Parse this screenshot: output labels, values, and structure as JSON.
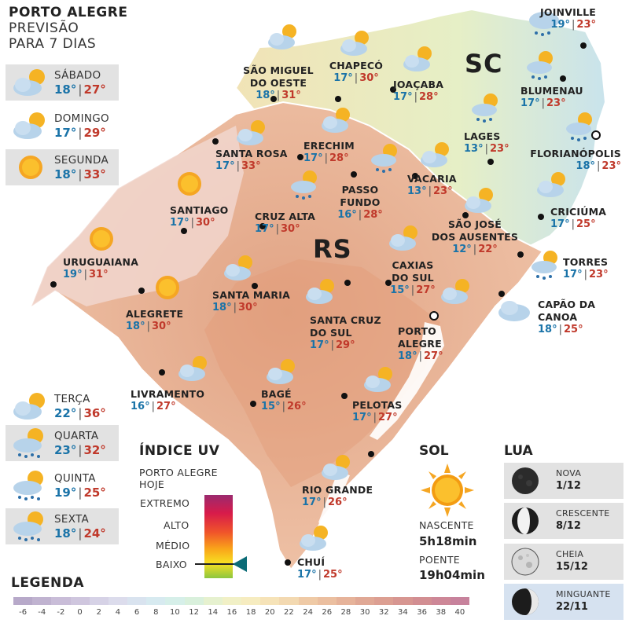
{
  "header": {
    "line1": "PORTO ALEGRE",
    "line2": "PREVISÃO",
    "line3": "PARA 7 DIAS"
  },
  "forecast_days": [
    {
      "name": "SÁBADO",
      "min": "18°",
      "max": "27°",
      "icon": "sun-cloud-icon"
    },
    {
      "name": "DOMINGO",
      "min": "17°",
      "max": "29°",
      "icon": "sun-cloud-icon"
    },
    {
      "name": "SEGUNDA",
      "min": "18°",
      "max": "33°",
      "icon": "sun-icon"
    },
    {
      "name": "TERÇA",
      "min": "22°",
      "max": "36°",
      "icon": "sun-cloud-icon"
    },
    {
      "name": "QUARTA",
      "min": "23°",
      "max": "32°",
      "icon": "sun-cloud-rain-icon"
    },
    {
      "name": "QUINTA",
      "min": "19°",
      "max": "25°",
      "icon": "sun-cloud-rain-icon"
    },
    {
      "name": "SEXTA",
      "min": "18°",
      "max": "24°",
      "icon": "sun-cloud-rain-icon"
    }
  ],
  "states": {
    "rs": "RS",
    "sc": "SC"
  },
  "cities": {
    "joinville": {
      "name": "JOINVILLE",
      "min": "19°",
      "max": "23°"
    },
    "blumenau": {
      "name": "BLUMENAU",
      "min": "17°",
      "max": "23°"
    },
    "chapeco": {
      "name": "CHAPECÓ",
      "min": "17°",
      "max": "30°"
    },
    "sao_miguel": {
      "name": "SÃO MIGUEL\nDO OESTE",
      "min": "18°",
      "max": "31°"
    },
    "joacaba": {
      "name": "JOAÇABA",
      "min": "17°",
      "max": "28°"
    },
    "lages": {
      "name": "LAGES",
      "min": "13°",
      "max": "23°"
    },
    "florianopolis": {
      "name": "FLORIANÓPOLIS",
      "min": "18°",
      "max": "23°"
    },
    "santa_rosa": {
      "name": "SANTA ROSA",
      "min": "17°",
      "max": "33°"
    },
    "erechim": {
      "name": "ERECHIM",
      "min": "17°",
      "max": "28°"
    },
    "vacaria": {
      "name": "VACARIA",
      "min": "13°",
      "max": "23°"
    },
    "passo_fundo": {
      "name": "PASSO\nFUNDO",
      "min": "16°",
      "max": "28°"
    },
    "santiago": {
      "name": "SANTIAGO",
      "min": "17°",
      "max": "30°"
    },
    "cruz_alta": {
      "name": "CRUZ ALTA",
      "min": "17°",
      "max": "30°"
    },
    "criciuma": {
      "name": "CRICIÚMA",
      "min": "17°",
      "max": "25°"
    },
    "sao_jose": {
      "name": "SÃO JOSÉ\nDOS AUSENTES",
      "min": "12°",
      "max": "22°"
    },
    "uruguaiana": {
      "name": "URUGUAIANA",
      "min": "19°",
      "max": "31°"
    },
    "torres": {
      "name": "TORRES",
      "min": "17°",
      "max": "23°"
    },
    "caxias": {
      "name": "CAXIAS\nDO SUL",
      "min": "15°",
      "max": "27°"
    },
    "santa_maria": {
      "name": "SANTA MARIA",
      "min": "18°",
      "max": "30°"
    },
    "capao": {
      "name": "CAPÃO DA\nCANOA",
      "min": "18°",
      "max": "25°"
    },
    "alegrete": {
      "name": "ALEGRETE",
      "min": "18°",
      "max": "30°"
    },
    "santa_cruz": {
      "name": "SANTA CRUZ\nDO SUL",
      "min": "17°",
      "max": "29°"
    },
    "porto_alegre": {
      "name": "PORTO\nALEGRE",
      "min": "18°",
      "max": "27°"
    },
    "livramento": {
      "name": "LIVRAMENTO",
      "min": "16°",
      "max": "27°"
    },
    "bage": {
      "name": "BAGÉ",
      "min": "15°",
      "max": "26°"
    },
    "pelotas": {
      "name": "PELOTAS",
      "min": "17°",
      "max": "27°"
    },
    "rio_grande": {
      "name": "RIO GRANDE",
      "min": "17°",
      "max": "26°"
    },
    "chui": {
      "name": "CHUÍ",
      "min": "17°",
      "max": "25°"
    }
  },
  "uv": {
    "title": "ÍNDICE UV",
    "subtitle_1": "PORTO ALEGRE",
    "subtitle_2": "HOJE",
    "levels": [
      "EXTREMO",
      "ALTO",
      "MÉDIO",
      "BAIXO"
    ],
    "current": "BAIXO"
  },
  "sol": {
    "title": "SOL",
    "sunrise_label": "NASCENTE",
    "sunrise": "5h18min",
    "sunset_label": "POENTE",
    "sunset": "19h04min"
  },
  "lua": {
    "title": "LUA",
    "phases": [
      {
        "name": "NOVA",
        "date": "1/12"
      },
      {
        "name": "CRESCENTE",
        "date": "8/12"
      },
      {
        "name": "CHEIA",
        "date": "15/12"
      },
      {
        "name": "MINGUANTE",
        "date": "22/11"
      }
    ]
  },
  "legend": {
    "title": "LEGENDA",
    "ticks": [
      "-6",
      "-4",
      "-2",
      "0",
      "2",
      "4",
      "6",
      "8",
      "10",
      "12",
      "14",
      "16",
      "18",
      "20",
      "22",
      "24",
      "26",
      "28",
      "30",
      "32",
      "34",
      "36",
      "38",
      "40"
    ],
    "colors": [
      "#b7a9c9",
      "#c0b3d0",
      "#c9bdd8",
      "#cfc6de",
      "#d6d2e6",
      "#dcdcec",
      "#d9e3ef",
      "#d7eaf0",
      "#d6efe9",
      "#d9f0dc",
      "#e6f1cf",
      "#f1f0c6",
      "#f6ecc0",
      "#f6e3b8",
      "#f3d9b1",
      "#efcaa6",
      "#ebbfa0",
      "#e6b39a",
      "#e0a895",
      "#dc9f92",
      "#d79691",
      "#d28e92",
      "#cd8797",
      "#c7829c"
    ]
  },
  "colors": {
    "min_temp": "#1a73a8",
    "max_temp": "#c0392b"
  }
}
